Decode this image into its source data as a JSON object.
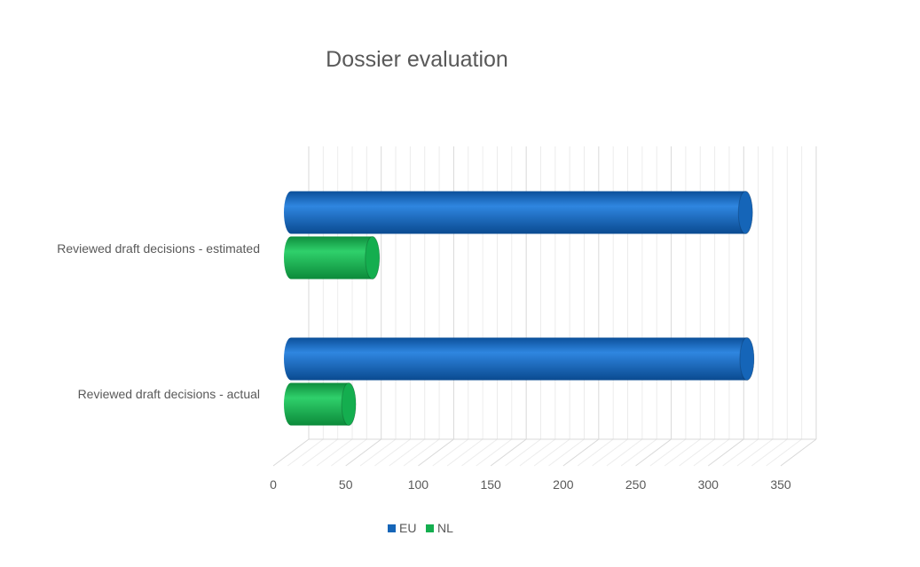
{
  "chart_data": {
    "type": "bar",
    "orientation": "horizontal",
    "style": "3d-cylinder",
    "title": "Dossier evaluation",
    "categories": [
      "Reviewed draft decisions - estimated",
      "Reviewed draft decisions - actual"
    ],
    "series": [
      {
        "name": "EU",
        "values": [
          307,
          308
        ]
      },
      {
        "name": "NL",
        "values": [
          55,
          39
        ]
      }
    ],
    "xlim": [
      0,
      350
    ],
    "ticks": [
      "0",
      "50",
      "100",
      "150",
      "200",
      "250",
      "300",
      "350"
    ],
    "tick_values": [
      0,
      50,
      100,
      150,
      200,
      250,
      300,
      350
    ],
    "grid": true,
    "legend": "bottom"
  },
  "colors": {
    "EU": "#1565b8",
    "NL": "#14ae4f"
  }
}
